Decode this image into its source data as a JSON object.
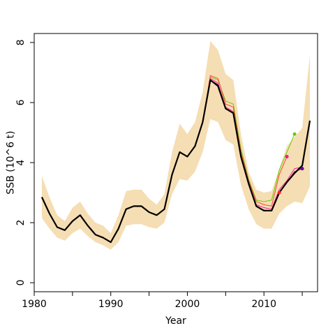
{
  "chart_data": {
    "type": "line",
    "xlabel": "Year",
    "ylabel": "SSB (10^6 t)",
    "xlim": [
      1980,
      2017
    ],
    "ylim": [
      -0.3,
      8.3
    ],
    "xticks": [
      1980,
      1985,
      1990,
      1995,
      2000,
      2005,
      2010,
      2015
    ],
    "xtick_labels": [
      "1980",
      "",
      "1990",
      "",
      "2000",
      "",
      "2010",
      ""
    ],
    "yticks": [
      0,
      2,
      4,
      6,
      8
    ],
    "ytick_labels": [
      "0",
      "2",
      "4",
      "6",
      "8"
    ],
    "grid": false,
    "legend": "none",
    "band": {
      "color": "#f5deb3",
      "x": [
        1981,
        1982,
        1983,
        1984,
        1985,
        1986,
        1987,
        1988,
        1989,
        1990,
        1991,
        1992,
        1993,
        1994,
        1995,
        1996,
        1997,
        1998,
        1999,
        2000,
        2001,
        2002,
        2003,
        2004,
        2005,
        2006,
        2007,
        2008,
        2009,
        2010,
        2011,
        2012,
        2013,
        2014,
        2015,
        2016
      ],
      "upper": [
        3.55,
        2.85,
        2.25,
        2.05,
        2.5,
        2.7,
        2.3,
        2.0,
        1.9,
        1.65,
        2.25,
        3.05,
        3.1,
        3.1,
        2.8,
        2.6,
        2.95,
        4.35,
        5.3,
        4.95,
        5.35,
        6.35,
        8.05,
        7.75,
        6.95,
        6.75,
        4.95,
        3.7,
        3.1,
        3.0,
        3.05,
        3.8,
        4.55,
        4.85,
        5.15,
        7.6
      ],
      "lower": [
        2.15,
        1.8,
        1.5,
        1.4,
        1.65,
        1.8,
        1.55,
        1.35,
        1.25,
        1.1,
        1.35,
        1.9,
        1.95,
        1.95,
        1.85,
        1.8,
        2.0,
        2.95,
        3.45,
        3.4,
        3.7,
        4.35,
        5.45,
        5.35,
        4.75,
        4.6,
        3.25,
        2.45,
        1.95,
        1.8,
        1.8,
        2.3,
        2.55,
        2.7,
        2.65,
        3.2
      ]
    },
    "series": [
      {
        "color": "#66cc00",
        "x": [
          1981,
          1982,
          1983,
          1984,
          1985,
          1986,
          1987,
          1988,
          1989,
          1990,
          1991,
          1992,
          1993,
          1994,
          1995,
          1996,
          1997,
          1998,
          1999,
          2000,
          2001,
          2002,
          2003,
          2004,
          2005,
          2006,
          2007,
          2008,
          2009,
          2010,
          2011,
          2012,
          2013,
          2014
        ],
        "y": [
          2.85,
          2.3,
          1.85,
          1.75,
          2.05,
          2.25,
          1.9,
          1.6,
          1.5,
          1.35,
          1.8,
          2.45,
          2.55,
          2.55,
          2.35,
          2.25,
          2.45,
          3.6,
          4.35,
          4.2,
          4.55,
          5.35,
          6.85,
          6.75,
          6.05,
          5.95,
          4.45,
          3.45,
          2.75,
          2.7,
          2.75,
          3.75,
          4.35,
          4.95
        ]
      },
      {
        "color": "#ff4040",
        "x": [
          1981,
          1982,
          1983,
          1984,
          1985,
          1986,
          1987,
          1988,
          1989,
          1990,
          1991,
          1992,
          1993,
          1994,
          1995,
          1996,
          1997,
          1998,
          1999,
          2000,
          2001,
          2002,
          2003,
          2004,
          2005,
          2006,
          2007,
          2008,
          2009,
          2010,
          2011,
          2012,
          2013
        ],
        "y": [
          2.85,
          2.3,
          1.85,
          1.75,
          2.05,
          2.25,
          1.9,
          1.6,
          1.5,
          1.35,
          1.8,
          2.45,
          2.55,
          2.55,
          2.35,
          2.25,
          2.45,
          3.6,
          4.35,
          4.2,
          4.55,
          5.35,
          6.9,
          6.8,
          5.95,
          5.85,
          4.35,
          3.4,
          2.7,
          2.6,
          2.55,
          3.6,
          4.2
        ]
      },
      {
        "color": "#ff1493",
        "x": [
          1981,
          1982,
          1983,
          1984,
          1985,
          1986,
          1987,
          1988,
          1989,
          1990,
          1991,
          1992,
          1993,
          1994,
          1995,
          1996,
          1997,
          1998,
          1999,
          2000,
          2001,
          2002,
          2003,
          2004,
          2005,
          2006,
          2007,
          2008,
          2009,
          2010,
          2011,
          2012,
          2013,
          2014,
          2015
        ],
        "y": [
          2.85,
          2.3,
          1.85,
          1.75,
          2.05,
          2.25,
          1.9,
          1.6,
          1.5,
          1.35,
          1.8,
          2.45,
          2.55,
          2.55,
          2.35,
          2.25,
          2.45,
          3.6,
          4.35,
          4.2,
          4.55,
          5.35,
          6.8,
          6.65,
          5.85,
          5.7,
          4.25,
          3.35,
          2.6,
          2.5,
          2.45,
          3.1,
          3.4,
          3.8,
          3.85
        ]
      },
      {
        "color": "#660099",
        "x": [
          1981,
          1982,
          1983,
          1984,
          1985,
          1986,
          1987,
          1988,
          1989,
          1990,
          1991,
          1992,
          1993,
          1994,
          1995,
          1996,
          1997,
          1998,
          1999,
          2000,
          2001,
          2002,
          2003,
          2004,
          2005,
          2006,
          2007,
          2008,
          2009,
          2010,
          2011,
          2012,
          2013,
          2014,
          2015
        ],
        "y": [
          2.85,
          2.3,
          1.85,
          1.75,
          2.05,
          2.25,
          1.9,
          1.6,
          1.5,
          1.35,
          1.8,
          2.45,
          2.55,
          2.55,
          2.35,
          2.25,
          2.45,
          3.6,
          4.35,
          4.2,
          4.55,
          5.35,
          6.75,
          6.6,
          5.8,
          5.65,
          4.2,
          3.3,
          2.55,
          2.42,
          2.4,
          3.0,
          3.35,
          3.7,
          3.8
        ]
      },
      {
        "color": "#000000",
        "x": [
          1981,
          1982,
          1983,
          1984,
          1985,
          1986,
          1987,
          1988,
          1989,
          1990,
          1991,
          1992,
          1993,
          1994,
          1995,
          1996,
          1997,
          1998,
          1999,
          2000,
          2001,
          2002,
          2003,
          2004,
          2005,
          2006,
          2007,
          2008,
          2009,
          2010,
          2011,
          2012,
          2013,
          2014,
          2015,
          2016
        ],
        "y": [
          2.85,
          2.3,
          1.85,
          1.75,
          2.05,
          2.25,
          1.9,
          1.6,
          1.5,
          1.35,
          1.8,
          2.45,
          2.55,
          2.55,
          2.35,
          2.25,
          2.45,
          3.6,
          4.35,
          4.2,
          4.55,
          5.35,
          6.75,
          6.55,
          5.8,
          5.65,
          4.2,
          3.3,
          2.55,
          2.4,
          2.4,
          3.0,
          3.35,
          3.65,
          3.9,
          5.4
        ]
      }
    ],
    "points": [
      {
        "x": 2012,
        "y": 3.0,
        "color": "#ff2020"
      },
      {
        "x": 2013,
        "y": 4.2,
        "color": "#ff1493"
      },
      {
        "x": 2014,
        "y": 4.95,
        "color": "#66cc00"
      },
      {
        "x": 2015,
        "y": 3.8,
        "color": "#660099"
      }
    ]
  }
}
